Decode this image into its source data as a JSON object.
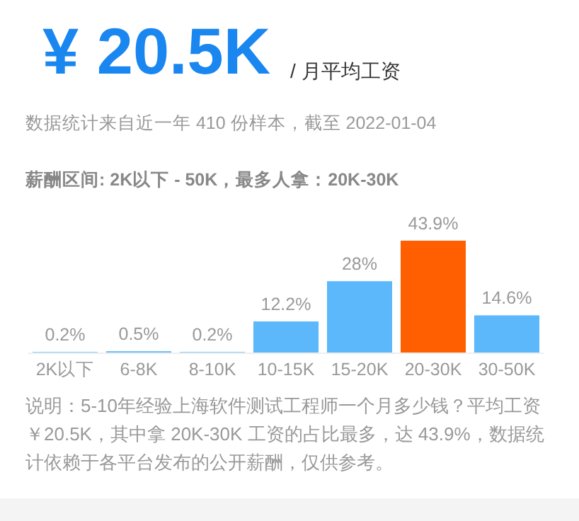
{
  "chart_data": {
    "type": "bar",
    "title": "¥ 20.5K",
    "subtitle": "/ 月平均工资",
    "categories": [
      "2K以下",
      "6-8K",
      "8-10K",
      "10-15K",
      "15-20K",
      "20-30K",
      "30-50K"
    ],
    "values": [
      0.2,
      0.5,
      0.2,
      12.2,
      28,
      43.9,
      14.6
    ],
    "value_labels": [
      "0.2%",
      "0.5%",
      "0.2%",
      "12.2%",
      "28%",
      "43.9%",
      "14.6%"
    ],
    "colors": [
      "#5cb8fb",
      "#5cb8fb",
      "#5cb8fb",
      "#5cb8fb",
      "#5cb8fb",
      "#ff5f00",
      "#5cb8fb"
    ],
    "annotations": [
      "数据统计来自近一年 410 份样本，截至 2022-01-04",
      "薪酬区间: 2K以下 - 50K，最多人拿：20K-30K",
      "说明：5-10年经验上海软件测试工程师一个月多少钱？平均工资￥20.5K，其中拿 20K-30K 工资的占比最多，达 43.9%，数据统计依赖于各平台发布的公开薪酬，仅供参考。"
    ]
  }
}
